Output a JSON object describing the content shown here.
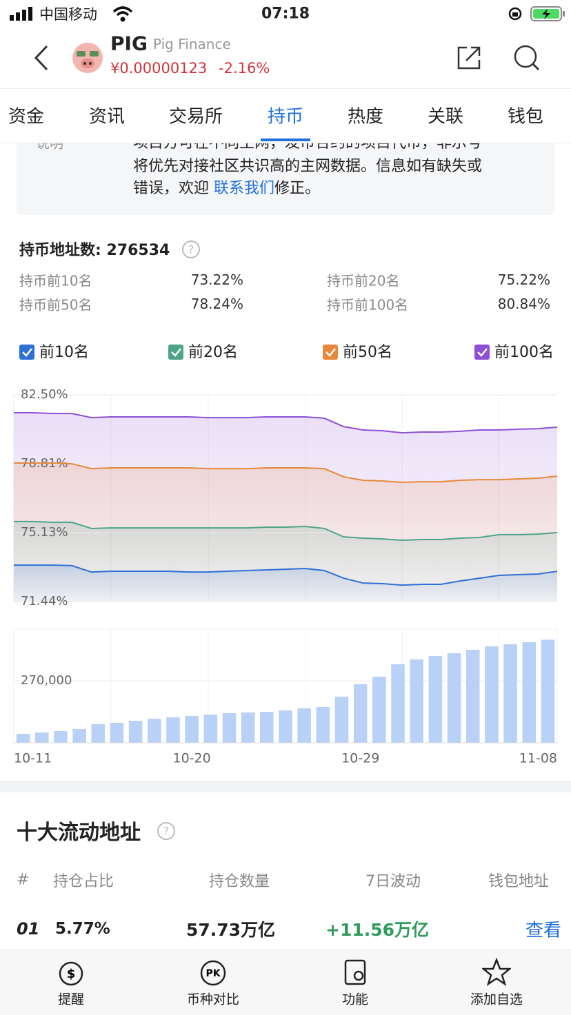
{
  "status": {
    "carrier": "中国移动",
    "time": "07:18"
  },
  "header": {
    "symbol": "PIG",
    "name": "Pig Finance",
    "price": "¥0.00000123",
    "change": "-2.16%"
  },
  "tabs": [
    "资金",
    "资讯",
    "交易所",
    "持币",
    "热度",
    "关联",
    "钱包"
  ],
  "active_tab": 3,
  "notice": {
    "label": "说明",
    "lines": [
      "项目方可在不同主网，发币合约的项目代币，非示号",
      "将优先对接社区共识高的主网数据。信息如有缺失或"
    ],
    "last_prefix": "错误，欢迎 ",
    "link": "联系我们",
    "last_suffix": "修正。"
  },
  "holders": {
    "label": "持币地址数:",
    "count": 276534
  },
  "stats": [
    {
      "label": "持币前10名",
      "value": "73.22%"
    },
    {
      "label": "持币前20名",
      "value": "75.22%"
    },
    {
      "label": "持币前50名",
      "value": "78.24%"
    },
    {
      "label": "持币前100名",
      "value": "80.84%"
    }
  ],
  "chart_data": [
    {
      "type": "line",
      "ylim": [
        71.44,
        82.5
      ],
      "yticks": [
        {
          "value": 82.5,
          "label": "82.50%"
        },
        {
          "value": 78.81,
          "label": "78.81%"
        },
        {
          "value": 75.13,
          "label": "75.13%"
        },
        {
          "value": 71.44,
          "label": "71.44%"
        }
      ],
      "grid": true,
      "series": [
        {
          "name": "前10名",
          "color": "#2f6fd6",
          "values": [
            73.39,
            73.39,
            73.39,
            73.36,
            73.02,
            73.06,
            73.06,
            73.06,
            73.06,
            73.02,
            73.02,
            73.06,
            73.1,
            73.13,
            73.17,
            73.21,
            73.1,
            72.69,
            72.43,
            72.4,
            72.32,
            72.36,
            72.36,
            72.54,
            72.69,
            72.84,
            72.88,
            72.91,
            73.06
          ]
        },
        {
          "name": "前20名",
          "color": "#4ea48a",
          "values": [
            75.72,
            75.72,
            75.68,
            75.68,
            75.35,
            75.38,
            75.38,
            75.38,
            75.38,
            75.38,
            75.38,
            75.38,
            75.38,
            75.42,
            75.42,
            75.46,
            75.35,
            74.9,
            74.83,
            74.79,
            74.72,
            74.76,
            74.76,
            74.83,
            74.87,
            75.02,
            75.02,
            75.05,
            75.13
          ]
        },
        {
          "name": "前50名",
          "color": "#e8883a",
          "values": [
            78.85,
            78.85,
            78.85,
            78.81,
            78.55,
            78.59,
            78.59,
            78.59,
            78.59,
            78.59,
            78.55,
            78.55,
            78.55,
            78.59,
            78.59,
            78.59,
            78.55,
            78.11,
            77.93,
            77.89,
            77.82,
            77.85,
            77.85,
            77.93,
            77.96,
            77.96,
            78.0,
            78.04,
            78.15
          ]
        },
        {
          "name": "前100名",
          "color": "#8e4fd6",
          "values": [
            81.54,
            81.54,
            81.5,
            81.5,
            81.28,
            81.32,
            81.32,
            81.32,
            81.32,
            81.32,
            81.28,
            81.28,
            81.28,
            81.32,
            81.32,
            81.32,
            81.25,
            80.8,
            80.62,
            80.58,
            80.47,
            80.51,
            80.51,
            80.55,
            80.62,
            80.62,
            80.66,
            80.69,
            80.77
          ]
        }
      ]
    },
    {
      "type": "bar",
      "color": "#b9d1f6",
      "categories": [
        "10-11",
        null,
        null,
        null,
        null,
        null,
        null,
        null,
        null,
        "10-20",
        null,
        null,
        null,
        null,
        null,
        null,
        null,
        null,
        "10-29",
        null,
        null,
        null,
        null,
        null,
        null,
        null,
        null,
        null,
        "11-08"
      ],
      "values": [
        261620,
        261840,
        262050,
        262380,
        263150,
        263360,
        263690,
        264020,
        264240,
        264450,
        264670,
        264890,
        265000,
        265110,
        265330,
        265660,
        265870,
        267510,
        269470,
        270670,
        272640,
        273400,
        273950,
        274380,
        274930,
        275470,
        275800,
        276130,
        276534
      ],
      "ylim": [
        260200,
        278200
      ],
      "yticks": [
        {
          "value": 270000,
          "label": "270,000"
        }
      ],
      "grid": true
    }
  ],
  "top_addresses": {
    "title": "十大流动地址",
    "columns": [
      "#",
      "持仓占比",
      "持仓数量",
      "7日波动",
      "钱包地址"
    ],
    "rows": [
      [
        "01",
        "5.77%",
        "57.73万亿",
        "+11.56万亿",
        "查看"
      ]
    ]
  },
  "nav": [
    "提醒",
    "币种对比",
    "功能",
    "添加自选"
  ]
}
